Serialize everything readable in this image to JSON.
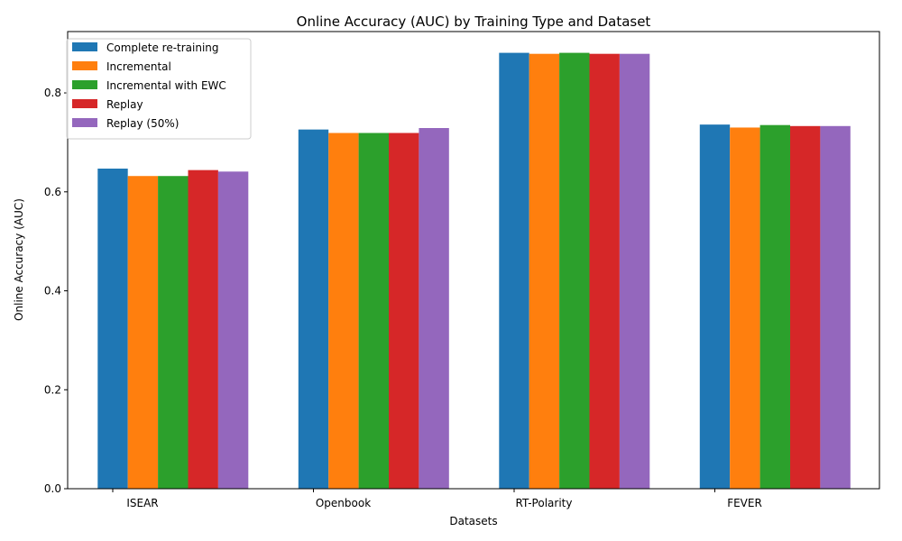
{
  "chart_data": {
    "type": "bar",
    "title": "Online Accuracy (AUC) by Training Type and Dataset",
    "xlabel": "Datasets",
    "ylabel": "Online Accuracy (AUC)",
    "categories": [
      "ISEAR",
      "Openbook",
      "RT-Polarity",
      "FEVER"
    ],
    "ylim": [
      0,
      0.924
    ],
    "yticks": [
      0.0,
      0.2,
      0.4,
      0.6,
      0.8
    ],
    "ytick_labels": [
      "0.0",
      "0.2",
      "0.4",
      "0.6",
      "0.8"
    ],
    "grid": false,
    "legend_position": "top-left",
    "series": [
      {
        "name": "Complete re-training",
        "color": "#1f77b4",
        "values": [
          0.647,
          0.726,
          0.881,
          0.736
        ]
      },
      {
        "name": "Incremental",
        "color": "#ff7f0e",
        "values": [
          0.632,
          0.719,
          0.879,
          0.73
        ]
      },
      {
        "name": "Incremental with EWC",
        "color": "#2ca02c",
        "values": [
          0.632,
          0.719,
          0.881,
          0.735
        ]
      },
      {
        "name": "Replay",
        "color": "#d62728",
        "values": [
          0.644,
          0.719,
          0.879,
          0.733
        ]
      },
      {
        "name": "Replay (50%)",
        "color": "#9467bd",
        "values": [
          0.641,
          0.729,
          0.879,
          0.733
        ]
      }
    ]
  }
}
